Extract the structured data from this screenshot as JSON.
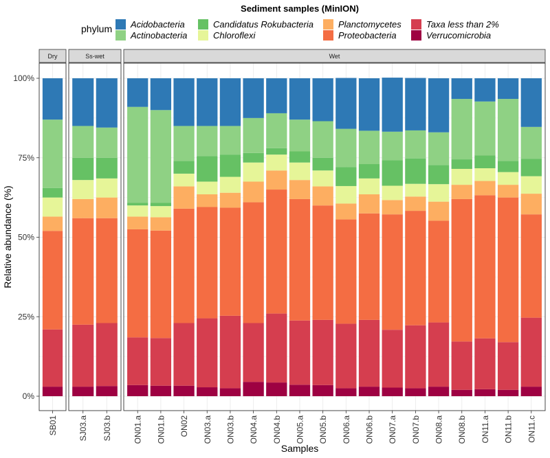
{
  "chart_data": {
    "type": "bar",
    "stacked": true,
    "title": "Sediment samples (MinION)",
    "xlabel": "Samples",
    "ylabel": "Relative abundance (%)",
    "ylim": [
      0,
      100
    ],
    "yticks": [
      "0%",
      "25%",
      "50%",
      "75%",
      "100%"
    ],
    "legend_title": "phylum",
    "legend_position": "top",
    "series": [
      {
        "name": "Verrucomicrobia",
        "color": "#9E0142"
      },
      {
        "name": "Taxa less than 2%",
        "color": "#D53E4F"
      },
      {
        "name": "Proteobacteria",
        "color": "#F46D43"
      },
      {
        "name": "Planctomycetes",
        "color": "#FDAE61"
      },
      {
        "name": "Chloroflexi",
        "color": "#E6F598"
      },
      {
        "name": "Candidatus Rokubacteria",
        "color": "#66C164"
      },
      {
        "name": "Actinobacteria",
        "color": "#8FD184"
      },
      {
        "name": "Acidobacteria",
        "color": "#2E79B5"
      }
    ],
    "legend_order": [
      "Acidobacteria",
      "Actinobacteria",
      "Candidatus Rokubacteria",
      "Chloroflexi",
      "Planctomycetes",
      "Proteobacteria",
      "Taxa less than 2%",
      "Verrucomicrobia"
    ],
    "facets": [
      {
        "label": "Dry",
        "samples": [
          {
            "name": "SB01",
            "values": [
              3.0,
              18.0,
              31.0,
              4.5,
              6.0,
              3.0,
              21.5,
              13.0
            ]
          }
        ]
      },
      {
        "label": "Ss-wet",
        "samples": [
          {
            "name": "SJ03.a",
            "values": [
              3.0,
              19.5,
              33.5,
              6.0,
              6.0,
              7.0,
              10.0,
              15.0
            ]
          },
          {
            "name": "SJ03.b",
            "values": [
              3.2,
              19.8,
              33.0,
              6.5,
              6.0,
              6.5,
              9.5,
              15.5
            ]
          }
        ]
      },
      {
        "label": "Wet",
        "samples": [
          {
            "name": "ON01.a",
            "values": [
              3.5,
              15.0,
              34.0,
              4.0,
              3.5,
              0.8,
              30.2,
              9.0
            ]
          },
          {
            "name": "ON01.b",
            "values": [
              3.3,
              15.0,
              33.8,
              4.2,
              3.5,
              1.0,
              29.2,
              10.0
            ]
          },
          {
            "name": "ON02",
            "values": [
              3.3,
              19.7,
              36.0,
              7.0,
              4.0,
              4.0,
              11.0,
              15.0
            ]
          },
          {
            "name": "ON03.a",
            "values": [
              2.8,
              21.7,
              35.0,
              4.0,
              4.0,
              8.0,
              9.5,
              15.0
            ]
          },
          {
            "name": "ON03.b",
            "values": [
              2.5,
              22.8,
              34.0,
              4.7,
              5.0,
              7.0,
              9.0,
              15.0
            ]
          },
          {
            "name": "ON04.a",
            "values": [
              4.5,
              18.5,
              38.0,
              6.5,
              6.0,
              3.0,
              11.0,
              12.5
            ]
          },
          {
            "name": "ON04.b",
            "values": [
              4.3,
              21.7,
              39.0,
              6.0,
              5.0,
              2.0,
              11.0,
              11.0
            ]
          },
          {
            "name": "ON05.a",
            "values": [
              3.6,
              20.2,
              38.2,
              6.0,
              5.5,
              3.5,
              10.0,
              13.0
            ]
          },
          {
            "name": "ON05.b",
            "values": [
              3.5,
              20.5,
              36.0,
              6.0,
              5.0,
              4.0,
              11.5,
              13.5
            ]
          },
          {
            "name": "ON06.a",
            "values": [
              2.5,
              20.3,
              32.8,
              5.0,
              5.5,
              6.0,
              12.0,
              16.0
            ]
          },
          {
            "name": "ON06.b",
            "values": [
              3.0,
              21.0,
              33.5,
              6.0,
              5.0,
              4.5,
              10.5,
              16.5
            ]
          },
          {
            "name": "ON07.a",
            "values": [
              2.7,
              18.2,
              36.3,
              4.5,
              4.5,
              8.0,
              9.0,
              17.0
            ]
          },
          {
            "name": "ON07.b",
            "values": [
              2.5,
              19.8,
              36.0,
              4.5,
              4.0,
              8.0,
              8.8,
              16.5
            ]
          },
          {
            "name": "ON08.a",
            "values": [
              3.0,
              20.2,
              32.0,
              6.0,
              5.5,
              6.0,
              10.3,
              17.0
            ]
          },
          {
            "name": "ON08.b",
            "values": [
              2.0,
              15.2,
              44.8,
              4.5,
              5.0,
              3.0,
              19.0,
              6.5
            ]
          },
          {
            "name": "ON11.a",
            "values": [
              2.2,
              16.0,
              45.0,
              4.5,
              4.0,
              4.0,
              17.0,
              7.3
            ]
          },
          {
            "name": "ON11.b",
            "values": [
              2.0,
              15.0,
              45.5,
              4.0,
              4.0,
              3.5,
              19.5,
              6.5
            ]
          },
          {
            "name": "ON11.c",
            "values": [
              3.0,
              21.7,
              32.5,
              6.5,
              5.5,
              5.5,
              10.0,
              15.3
            ]
          }
        ]
      }
    ]
  }
}
